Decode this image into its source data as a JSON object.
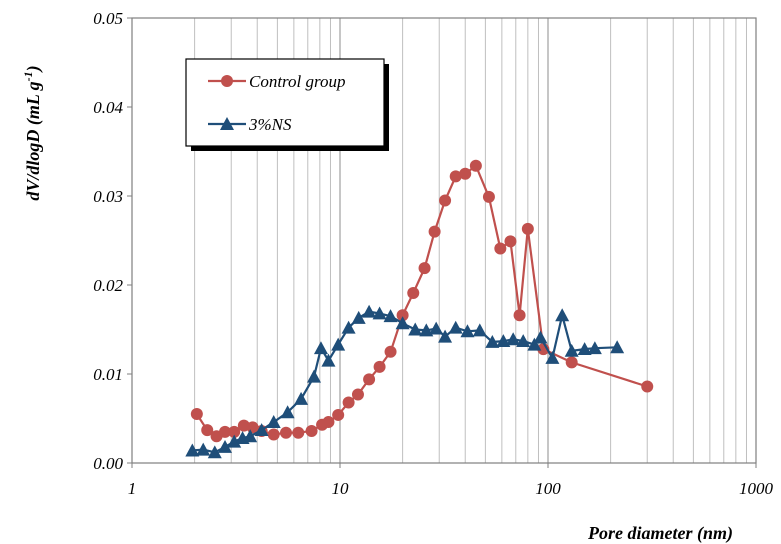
{
  "chart_data": {
    "type": "line",
    "xscale": "log",
    "xlim": [
      1,
      1000
    ],
    "ylim": [
      0,
      0.05
    ],
    "x_ticks": [
      1,
      10,
      100,
      1000
    ],
    "x_tick_labels": [
      "1",
      "10",
      "100",
      "1000"
    ],
    "y_ticks": [
      0,
      0.01,
      0.02,
      0.03,
      0.04,
      0.05
    ],
    "y_tick_labels": [
      "0.00",
      "0.01",
      "0.02",
      "0.03",
      "0.04",
      "0.05"
    ],
    "xlabel": "Pore diameter (nm)",
    "ylabel": {
      "main": "dV/dlogD (mL g",
      "sup": "-1",
      "end": ")"
    },
    "grid": "vertical minor (log)",
    "legend_position": "top-left",
    "series": [
      {
        "name": "Control group",
        "color": "#C0504D",
        "marker": "circle",
        "x": [
          2.05,
          2.3,
          2.55,
          2.8,
          3.1,
          3.45,
          3.8,
          4.2,
          4.8,
          5.5,
          6.3,
          7.3,
          8.2,
          8.8,
          9.8,
          11,
          12.2,
          13.8,
          15.5,
          17.5,
          20,
          22.5,
          25.5,
          28.5,
          32,
          36,
          40,
          45,
          52,
          59,
          66,
          73,
          80,
          95,
          130,
          300
        ],
        "y": [
          0.0055,
          0.0037,
          0.003,
          0.0035,
          0.0035,
          0.0042,
          0.004,
          0.0036,
          0.0032,
          0.0034,
          0.0034,
          0.0036,
          0.0043,
          0.0046,
          0.0054,
          0.0068,
          0.0077,
          0.0094,
          0.0108,
          0.0125,
          0.0166,
          0.0191,
          0.0219,
          0.026,
          0.0295,
          0.0322,
          0.0325,
          0.0334,
          0.0299,
          0.0241,
          0.0249,
          0.0166,
          0.0263,
          0.0128,
          0.0113,
          0.0086
        ]
      },
      {
        "name": "3%NS",
        "color": "#1F4E79",
        "marker": "triangle",
        "x": [
          1.95,
          2.2,
          2.5,
          2.8,
          3.1,
          3.4,
          3.7,
          4.2,
          4.8,
          5.6,
          6.5,
          7.5,
          8.1,
          8.8,
          9.8,
          11,
          12.3,
          13.8,
          15.5,
          17.5,
          20,
          23,
          26,
          29,
          32,
          36,
          41,
          47,
          54,
          61,
          68,
          76,
          86,
          92,
          105,
          117,
          130,
          150,
          168,
          215
        ],
        "y": [
          0.0014,
          0.0015,
          0.0012,
          0.0018,
          0.0024,
          0.0028,
          0.003,
          0.0037,
          0.0046,
          0.0057,
          0.0072,
          0.0097,
          0.0129,
          0.0115,
          0.0133,
          0.0152,
          0.0163,
          0.017,
          0.0168,
          0.0165,
          0.0157,
          0.015,
          0.0149,
          0.0151,
          0.0142,
          0.0152,
          0.0148,
          0.0149,
          0.0136,
          0.0137,
          0.0139,
          0.0137,
          0.0133,
          0.0141,
          0.0118,
          0.0166,
          0.0126,
          0.0128,
          0.0129,
          0.013
        ]
      }
    ]
  }
}
